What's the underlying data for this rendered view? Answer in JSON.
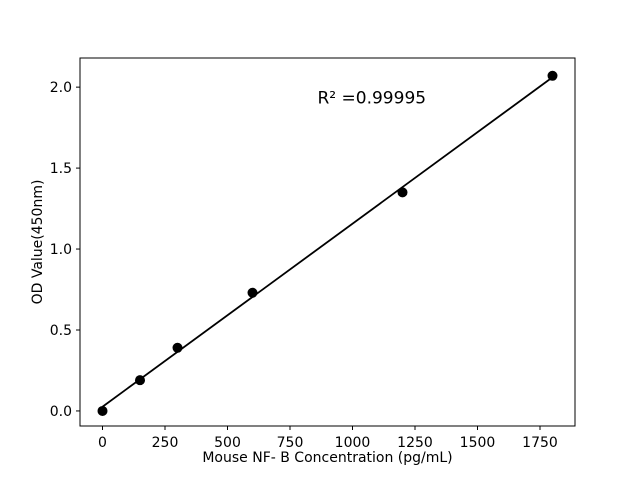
{
  "chart_data": {
    "type": "scatter",
    "title": "",
    "xlabel": "Mouse NF- B Concentration (pg/mL)",
    "ylabel": "OD Value(450nm)",
    "x": [
      0,
      150,
      300,
      600,
      1200,
      1800
    ],
    "y": [
      0.0,
      0.19,
      0.39,
      0.73,
      1.35,
      2.07
    ],
    "fit_line": {
      "slope": 0.0011306,
      "intercept": 0.026,
      "x_start": 0,
      "x_end": 1800
    },
    "annotation": {
      "text": "R² =0.99995",
      "x": 860,
      "y": 1.9
    },
    "xticks": {
      "values": [
        0,
        250,
        500,
        750,
        1000,
        1250,
        1500,
        1750
      ],
      "labels": [
        "0",
        "250",
        "500",
        "750",
        "1000",
        "1250",
        "1500",
        "1750"
      ]
    },
    "yticks": {
      "values": [
        0.0,
        0.5,
        1.0,
        1.5,
        2.0
      ],
      "labels": [
        "0.0",
        "0.5",
        "1.0",
        "1.5",
        "2.0"
      ]
    },
    "xlim": [
      -90,
      1890
    ],
    "ylim": [
      -0.093,
      2.18
    ],
    "grid": false,
    "legend_position": "none",
    "marker_color": "#000000",
    "line_color": "#000000",
    "axis_color": "#000000",
    "background": "#ffffff"
  }
}
